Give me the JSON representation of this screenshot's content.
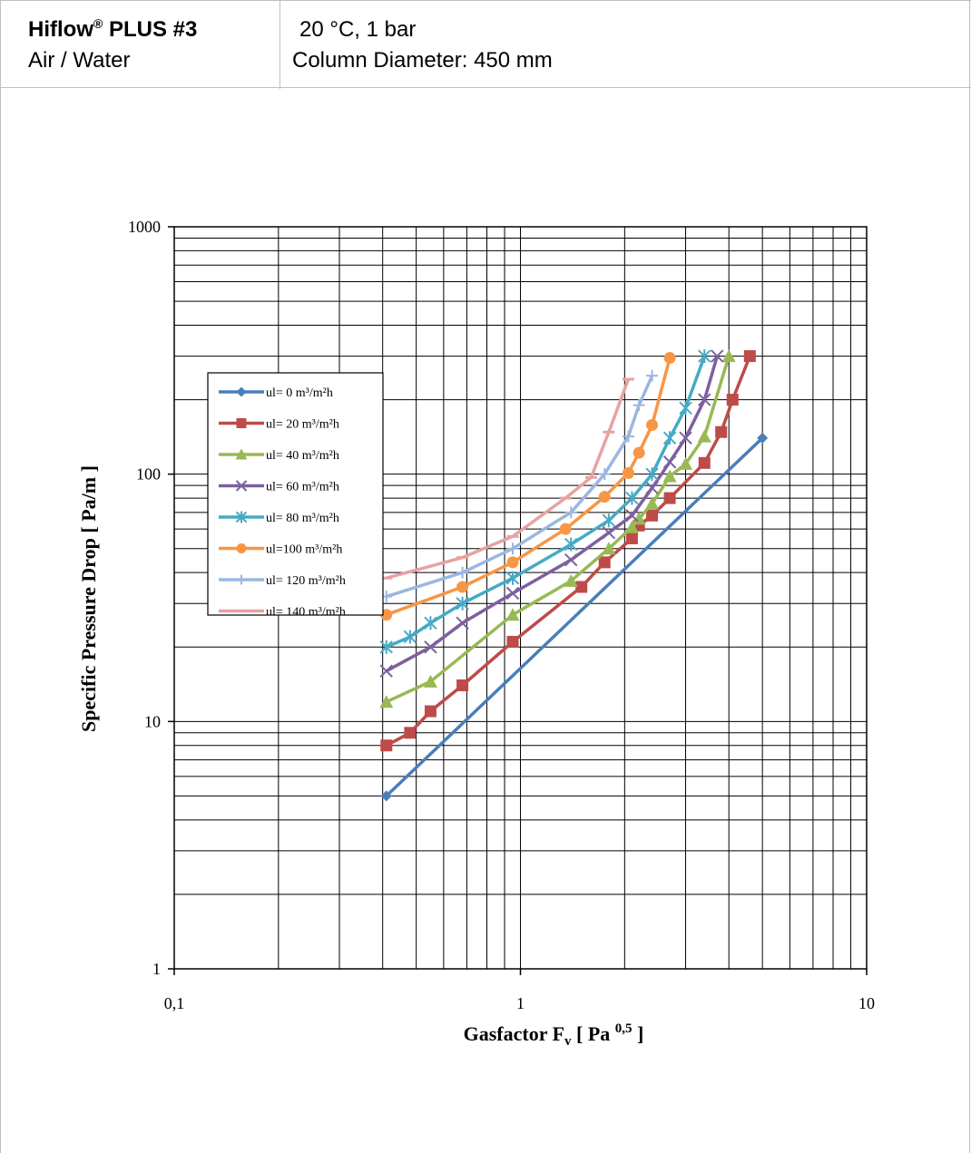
{
  "header": {
    "product": "Hiflow",
    "product_sup": "®",
    "product_suffix": " PLUS #3",
    "medium": "Air / Water",
    "conditions": "20 °C, 1 bar",
    "diameter": "Column Diameter: 450 mm"
  },
  "chart_data": {
    "type": "line",
    "x_scale": "log",
    "y_scale": "log",
    "xlim": [
      0.1,
      10
    ],
    "ylim": [
      1,
      1000
    ],
    "grid": true,
    "legend_position": "left",
    "xlabel": "Gasfactor  F",
    "xlabel_sub": "v",
    "xlabel_bracket": " [ Pa ",
    "xlabel_sup": "0,5",
    "xlabel_end": " ]",
    "ylabel": "Specific Pressure Drop [ Pa/m ]",
    "x_ticks": [
      {
        "value": 0.1,
        "label": "0,1"
      },
      {
        "value": 1,
        "label": "1"
      },
      {
        "value": 10,
        "label": "10"
      }
    ],
    "y_ticks": [
      {
        "value": 1,
        "label": "1"
      },
      {
        "value": 10,
        "label": "10"
      },
      {
        "value": 100,
        "label": "100"
      },
      {
        "value": 1000,
        "label": "1000"
      }
    ],
    "series": [
      {
        "name": "ul= 0 m³/m²h",
        "color": "#4a7ebb",
        "marker": "diamond",
        "points": [
          [
            0.41,
            5
          ],
          [
            5.0,
            140
          ]
        ]
      },
      {
        "name": "ul= 20 m³/m²h",
        "color": "#be4b48",
        "marker": "square",
        "points": [
          [
            0.41,
            8
          ],
          [
            0.48,
            9
          ],
          [
            0.55,
            11
          ],
          [
            0.68,
            14
          ],
          [
            0.95,
            21
          ],
          [
            1.5,
            35
          ],
          [
            1.75,
            44
          ],
          [
            2.1,
            55
          ],
          [
            2.2,
            62
          ],
          [
            2.4,
            68
          ],
          [
            2.7,
            80
          ],
          [
            3.4,
            111
          ],
          [
            3.8,
            148
          ],
          [
            4.1,
            200
          ],
          [
            4.6,
            300
          ]
        ]
      },
      {
        "name": "ul= 40 m³/m²h",
        "color": "#98b954",
        "marker": "triangle",
        "points": [
          [
            0.41,
            12
          ],
          [
            0.55,
            14.5
          ],
          [
            0.95,
            27
          ],
          [
            1.4,
            37
          ],
          [
            1.8,
            50
          ],
          [
            2.1,
            61
          ],
          [
            2.2,
            66
          ],
          [
            2.4,
            76
          ],
          [
            2.7,
            98
          ],
          [
            3.0,
            110
          ],
          [
            3.4,
            142
          ],
          [
            4.0,
            300
          ]
        ]
      },
      {
        "name": "ul= 60 m³/m²h",
        "color": "#7d60a0",
        "marker": "x",
        "points": [
          [
            0.41,
            16
          ],
          [
            0.55,
            20
          ],
          [
            0.68,
            25
          ],
          [
            0.95,
            33
          ],
          [
            1.4,
            45
          ],
          [
            1.8,
            58
          ],
          [
            2.1,
            68
          ],
          [
            2.4,
            88
          ],
          [
            2.7,
            112
          ],
          [
            3.0,
            140
          ],
          [
            3.4,
            200
          ],
          [
            3.7,
            300
          ]
        ]
      },
      {
        "name": "ul= 80 m³/m²h",
        "color": "#46aac5",
        "marker": "star",
        "points": [
          [
            0.41,
            20
          ],
          [
            0.48,
            22
          ],
          [
            0.55,
            25
          ],
          [
            0.68,
            30
          ],
          [
            0.95,
            38
          ],
          [
            1.4,
            52
          ],
          [
            1.8,
            65
          ],
          [
            2.1,
            80
          ],
          [
            2.4,
            100
          ],
          [
            2.7,
            140
          ],
          [
            3.0,
            185
          ],
          [
            3.4,
            300
          ]
        ]
      },
      {
        "name": "ul=100 m³/m²h",
        "color": "#f79646",
        "marker": "circle",
        "points": [
          [
            0.41,
            27
          ],
          [
            0.68,
            35
          ],
          [
            0.95,
            44
          ],
          [
            1.35,
            60
          ],
          [
            1.75,
            81
          ],
          [
            2.05,
            101
          ],
          [
            2.2,
            122
          ],
          [
            2.4,
            158
          ],
          [
            2.7,
            295
          ]
        ]
      },
      {
        "name": "ul= 120 m³/m²h",
        "color": "#9bb7e0",
        "marker": "plus",
        "points": [
          [
            0.41,
            32
          ],
          [
            0.68,
            40
          ],
          [
            0.95,
            50
          ],
          [
            1.4,
            70
          ],
          [
            1.75,
            100
          ],
          [
            2.05,
            142
          ],
          [
            2.2,
            190
          ],
          [
            2.4,
            250
          ]
        ]
      },
      {
        "name": "ul= 140 m³/m²h",
        "color": "#e6a3a2",
        "marker": "dash",
        "points": [
          [
            0.41,
            38
          ],
          [
            0.68,
            46
          ],
          [
            0.95,
            56
          ],
          [
            1.35,
            80
          ],
          [
            1.6,
            97
          ],
          [
            1.8,
            148
          ],
          [
            2.05,
            242
          ]
        ]
      }
    ]
  }
}
